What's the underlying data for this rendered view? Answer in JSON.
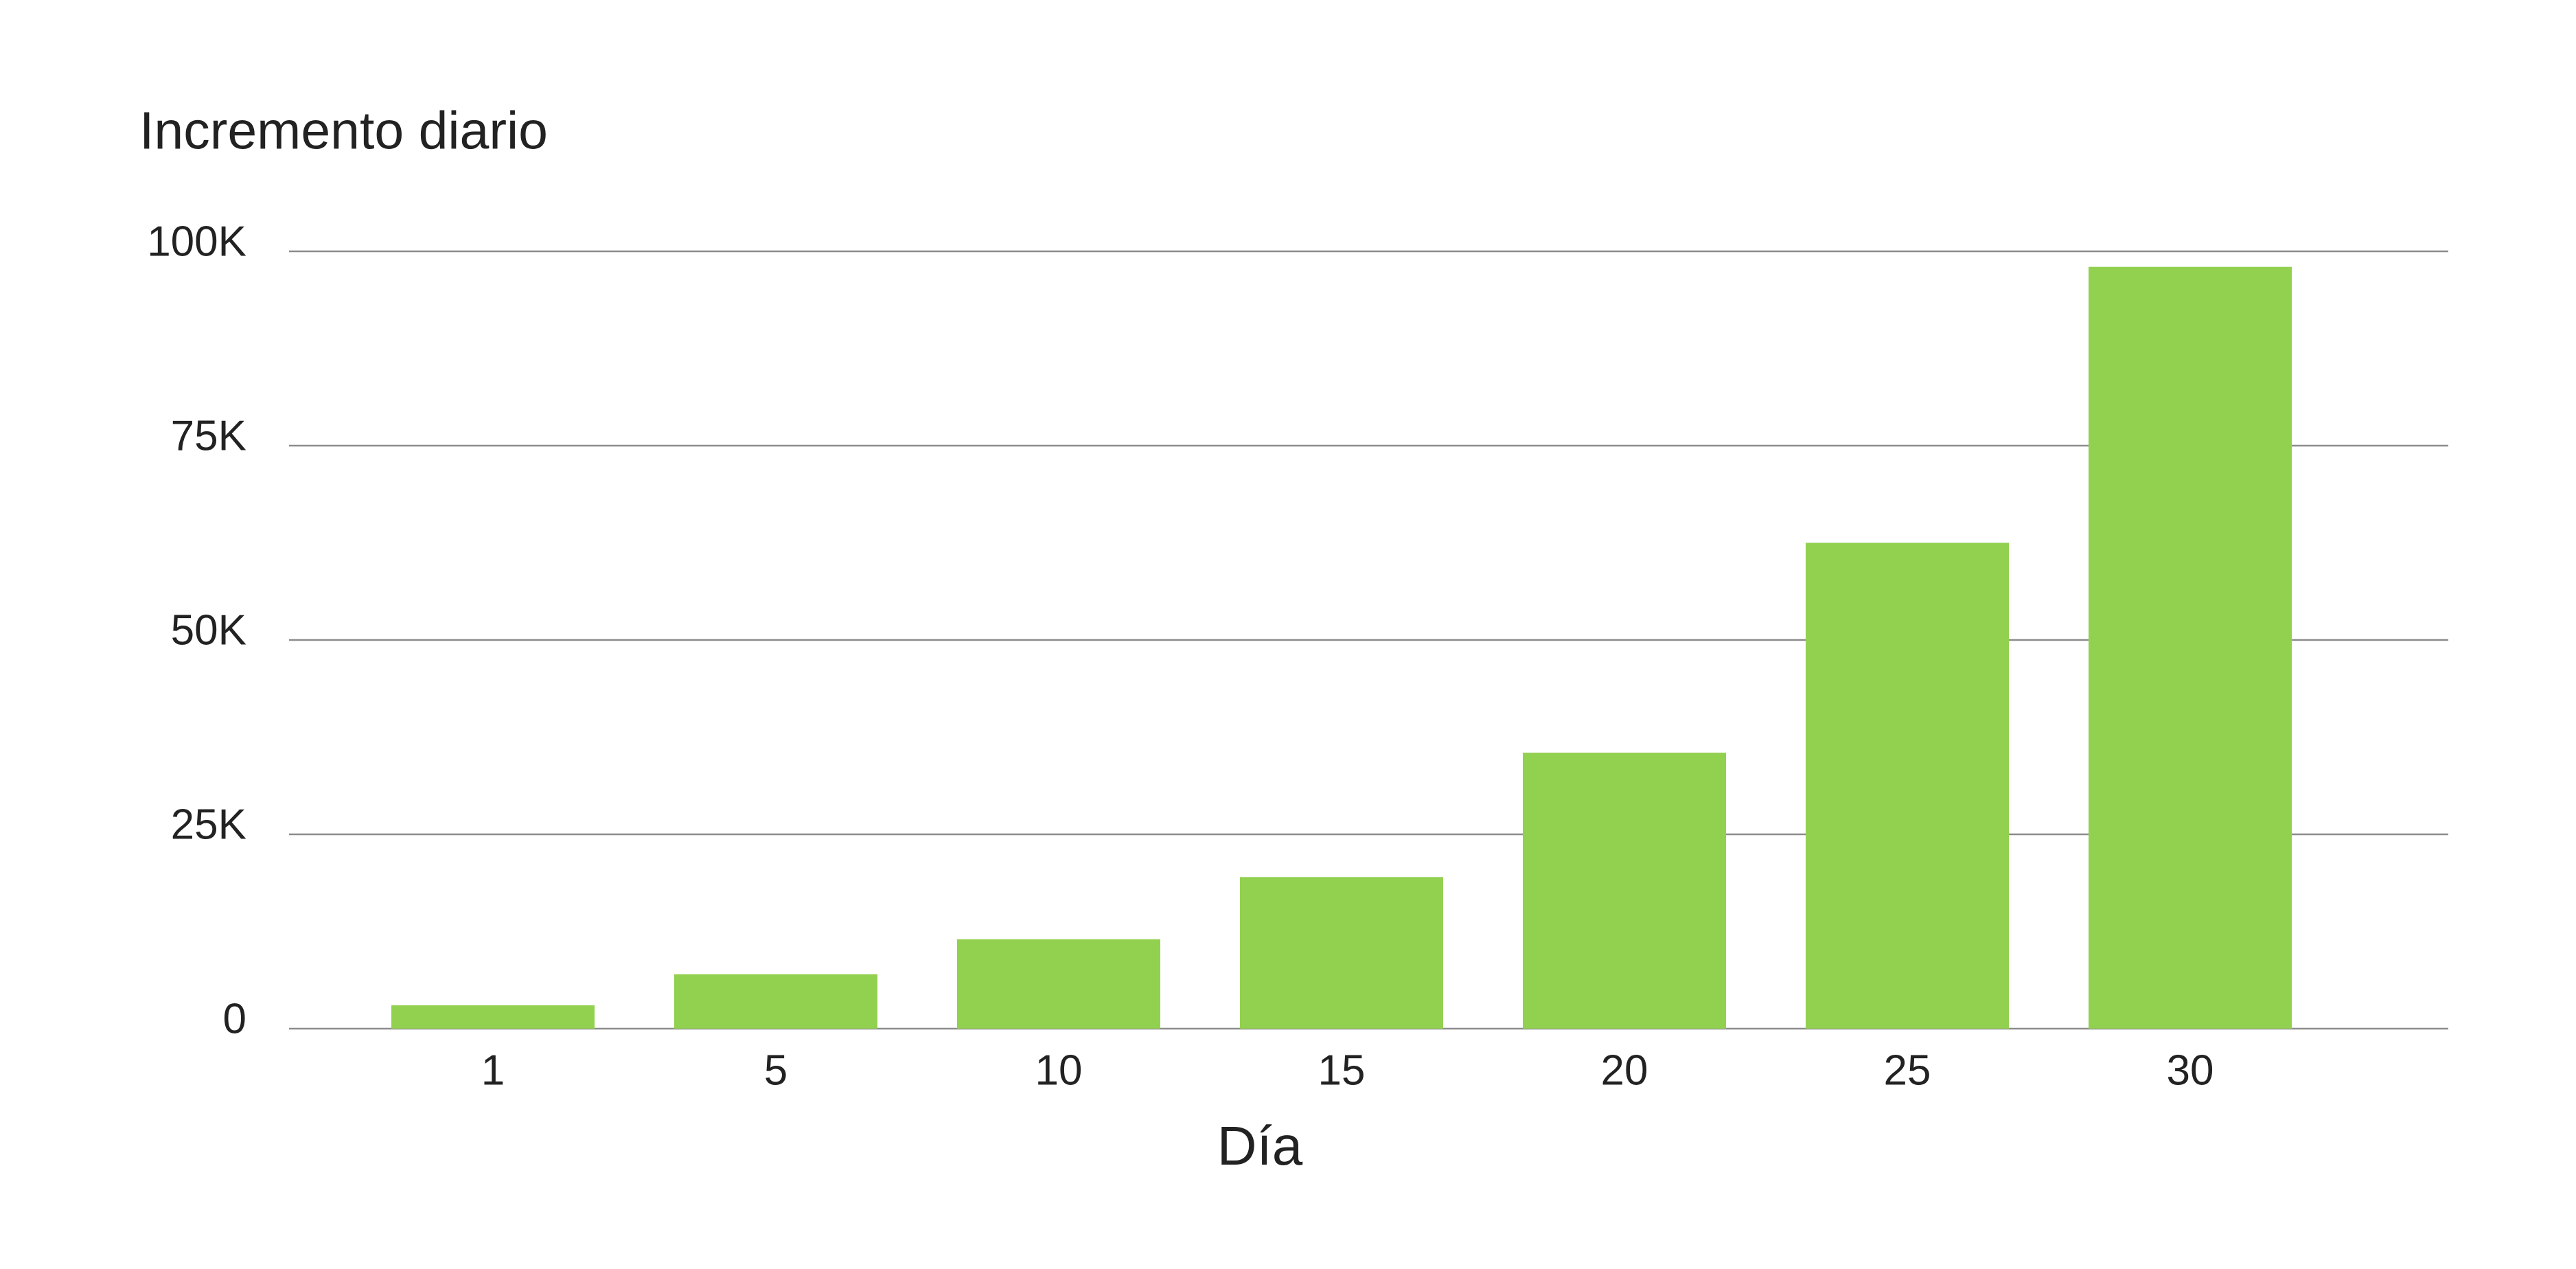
{
  "chart_data": {
    "type": "bar",
    "y_axis_title": "Incremento diario",
    "x_axis_title": "Día",
    "categories": [
      "1",
      "5",
      "10",
      "15",
      "20",
      "25",
      "30"
    ],
    "values": [
      3000,
      7000,
      11500,
      19500,
      35500,
      62500,
      98000
    ],
    "color": "#92d050",
    "ylim": [
      0,
      100000
    ],
    "yticks": [
      0,
      {
        "value": 25000,
        "label": "25K"
      },
      {
        "value": 50000,
        "label": "50K"
      },
      {
        "value": 75000,
        "label": "75K"
      },
      {
        "value": 100000,
        "label": "100K"
      }
    ],
    "grid": true
  }
}
